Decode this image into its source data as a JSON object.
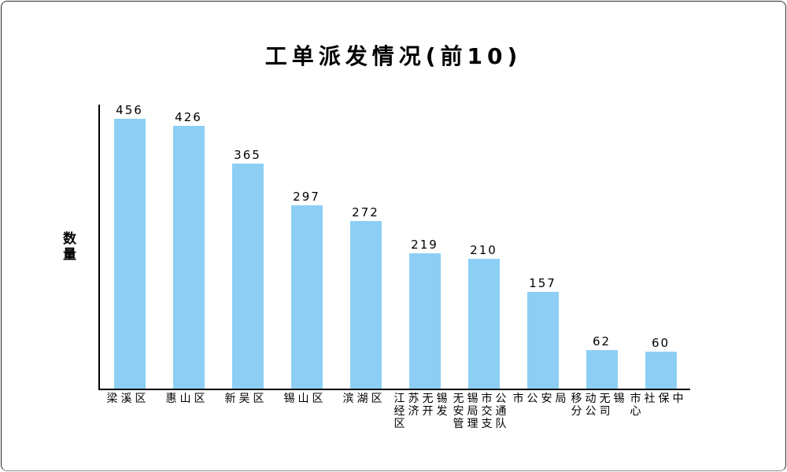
{
  "chart_data": {
    "type": "bar",
    "title": "工单派发情况(前10)",
    "xlabel": "",
    "ylabel": "数量",
    "categories": [
      "梁溪区",
      "惠山区",
      "新吴区",
      "锡山区",
      "滨湖区",
      "江苏无锡经济开发区",
      "无锡市公安局交通管理支队",
      "市公安局",
      "移动无锡分公司",
      "市社保中心"
    ],
    "values": [
      456,
      426,
      365,
      297,
      272,
      219,
      210,
      157,
      62,
      60
    ],
    "ylim": [
      0,
      460
    ],
    "grid": false,
    "legend": false,
    "value_labels_shown": true,
    "colors": {
      "bar": "#8dcff4",
      "axis": "#000000",
      "text": "#000000",
      "background": "#ffffff",
      "border": "#2b2b2b"
    }
  }
}
